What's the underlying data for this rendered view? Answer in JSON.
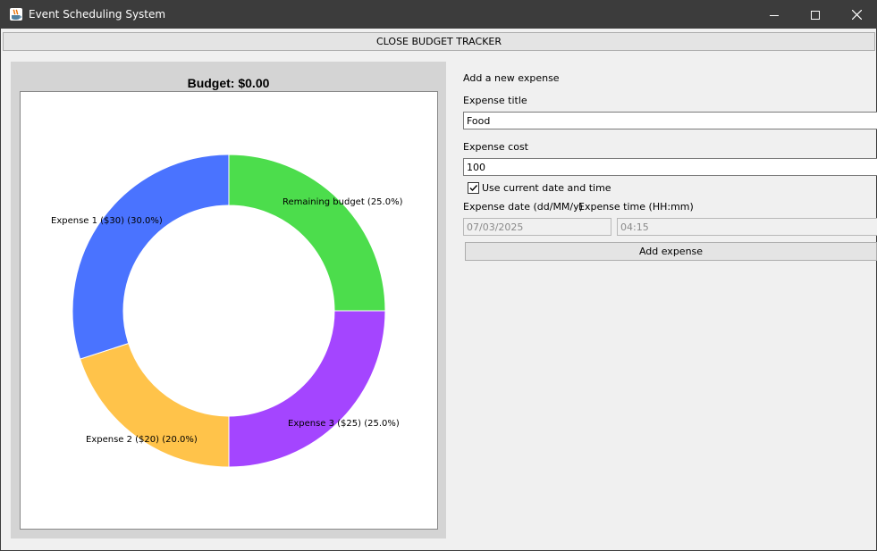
{
  "window": {
    "title": "Event Scheduling System",
    "icon": "java-cup-icon"
  },
  "toolbar": {
    "close_budget_label": "CLOSE BUDGET TRACKER"
  },
  "chart_data": {
    "type": "pie",
    "title": "Budget: $0.00",
    "donut": true,
    "slices": [
      {
        "label": "Remaining budget (25.0%)",
        "percent": 25.0,
        "color": "#4cdd4c"
      },
      {
        "label": "Expense 3 ($25) (25.0%)",
        "percent": 25.0,
        "color": "#a445ff"
      },
      {
        "label": "Expense 2 ($20) (20.0%)",
        "percent": 20.0,
        "color": "#ffc34a"
      },
      {
        "label": "Expense 1 ($30) (30.0%)",
        "percent": 30.0,
        "color": "#4a73ff"
      }
    ]
  },
  "form": {
    "heading": "Add a new expense",
    "title_label": "Expense title",
    "title_value": "Food",
    "cost_label": "Expense cost",
    "cost_value": "100",
    "use_current_label": "Use current date and time",
    "use_current_checked": true,
    "date_label": "Expense date (dd/MM/y)",
    "time_label": "Expense time (HH:mm)",
    "date_value": "07/03/2025",
    "time_value": "04:15",
    "add_button_label": "Add expense"
  }
}
